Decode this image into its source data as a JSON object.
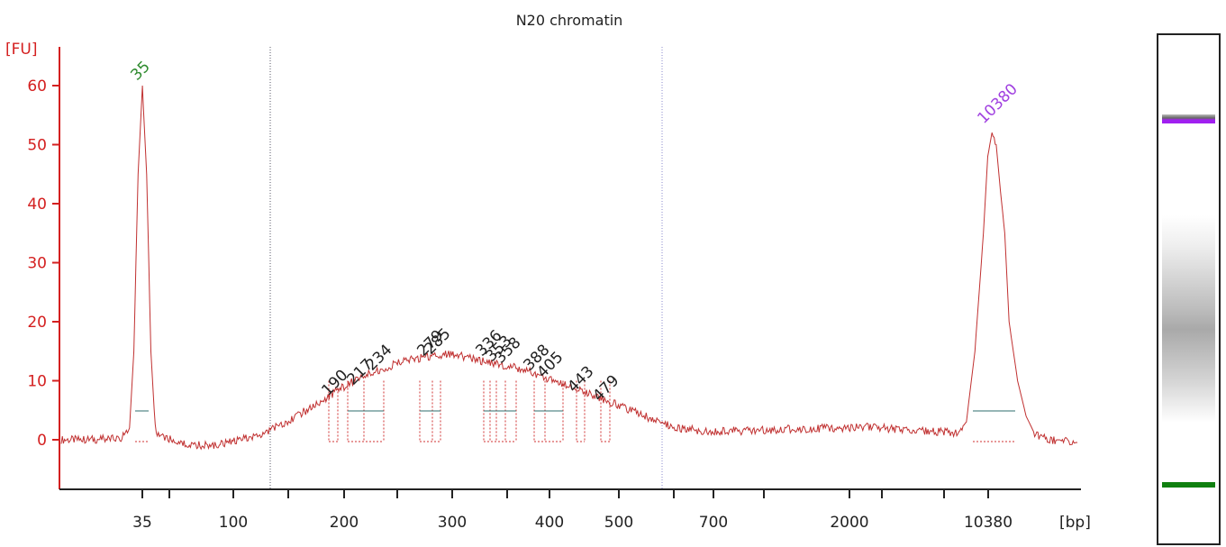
{
  "chart_data": {
    "type": "line",
    "title": "N20 chromatin",
    "ylabel": "[FU]",
    "xlabel": "[bp]",
    "ylim": [
      -8.5,
      67
    ],
    "y_ticks": [
      0,
      10,
      20,
      30,
      40,
      50,
      60
    ],
    "x_tick_labels": [
      "35",
      "100",
      "200",
      "300",
      "400",
      "500",
      "700",
      "2000",
      "10380"
    ],
    "series": [
      {
        "color": "#c03030",
        "points": [
          [
            0,
            0
          ],
          [
            5,
            0
          ],
          [
            10,
            0.1
          ],
          [
            14,
            0.2
          ],
          [
            16,
            2
          ],
          [
            17,
            15
          ],
          [
            18,
            45
          ],
          [
            19,
            60
          ],
          [
            20,
            45
          ],
          [
            21,
            15
          ],
          [
            22,
            2
          ],
          [
            23,
            0.5
          ],
          [
            25,
            0.2
          ],
          [
            27,
            -0.5
          ],
          [
            30,
            -0.8
          ],
          [
            33,
            -1
          ],
          [
            36,
            -0.9
          ],
          [
            40,
            -0.4
          ],
          [
            45,
            0.5
          ],
          [
            50,
            2
          ],
          [
            55,
            4
          ],
          [
            60,
            6
          ],
          [
            65,
            8.5
          ],
          [
            70,
            10.5
          ],
          [
            75,
            12
          ],
          [
            80,
            13.2
          ],
          [
            85,
            14
          ],
          [
            90,
            14.5
          ],
          [
            95,
            14
          ],
          [
            100,
            13
          ],
          [
            105,
            12.5
          ],
          [
            110,
            11.5
          ],
          [
            115,
            10
          ],
          [
            120,
            9
          ],
          [
            125,
            7.5
          ],
          [
            130,
            6
          ],
          [
            135,
            4.5
          ],
          [
            140,
            3
          ],
          [
            145,
            2
          ],
          [
            150,
            1.5
          ],
          [
            160,
            1.5
          ],
          [
            170,
            1.8
          ],
          [
            180,
            2
          ],
          [
            190,
            2.2
          ],
          [
            195,
            1.8
          ],
          [
            200,
            1.5
          ],
          [
            205,
            1.4
          ],
          [
            210,
            1.2
          ],
          [
            212,
            3
          ],
          [
            214,
            15
          ],
          [
            216,
            35
          ],
          [
            217,
            48
          ],
          [
            218,
            52
          ],
          [
            219,
            50
          ],
          [
            220,
            42
          ],
          [
            221,
            35
          ],
          [
            222,
            20
          ],
          [
            224,
            10
          ],
          [
            226,
            4
          ],
          [
            228,
            1
          ],
          [
            232,
            0
          ],
          [
            238,
            -0.5
          ]
        ]
      }
    ],
    "peaks": [
      {
        "label": "35",
        "color": "#2e8b2e"
      },
      {
        "label": "190",
        "color": "#222222"
      },
      {
        "label": "217",
        "color": "#222222"
      },
      {
        "label": "234",
        "color": "#222222"
      },
      {
        "label": "279",
        "color": "#222222"
      },
      {
        "label": "285",
        "color": "#222222"
      },
      {
        "label": "336",
        "color": "#222222"
      },
      {
        "label": "353",
        "color": "#222222"
      },
      {
        "label": "358",
        "color": "#222222"
      },
      {
        "label": "388",
        "color": "#222222"
      },
      {
        "label": "405",
        "color": "#222222"
      },
      {
        "label": "443",
        "color": "#222222"
      },
      {
        "label": "479",
        "color": "#222222"
      },
      {
        "label": "10380",
        "color": "#a040e0"
      }
    ],
    "grid": false,
    "legend": "none"
  },
  "gel": {
    "upper_marker_color": "#a020f0",
    "lower_marker_color": "#108010"
  }
}
